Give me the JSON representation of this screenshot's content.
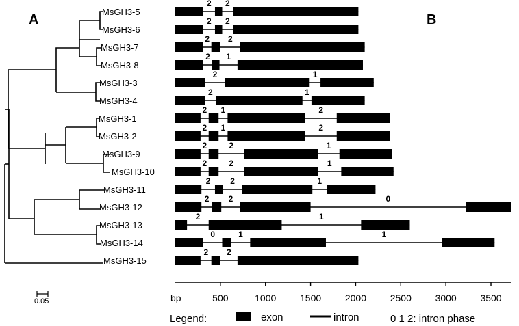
{
  "panels": {
    "a": "A",
    "b": "B"
  },
  "scale_bar": "0.05",
  "axis": {
    "label": "bp",
    "max": 3720,
    "ticks": [
      500,
      1000,
      1500,
      2000,
      2500,
      3000,
      3500
    ]
  },
  "legend": {
    "title": "Legend:",
    "exon": "exon",
    "intron": "intron",
    "phase": "0 1 2: intron phase"
  },
  "colors": {
    "exon": "#000000",
    "line": "#000000"
  },
  "genes": [
    {
      "name": "MsGH3-5",
      "exons": [
        [
          0,
          310
        ],
        [
          440,
          520
        ],
        [
          640,
          2030
        ]
      ],
      "phases": [
        "2",
        "2"
      ]
    },
    {
      "name": "MsGH3-6",
      "exons": [
        [
          0,
          310
        ],
        [
          440,
          520
        ],
        [
          640,
          2030
        ]
      ],
      "phases": [
        "2",
        "2"
      ]
    },
    {
      "name": "MsGH3-7",
      "exons": [
        [
          0,
          310
        ],
        [
          400,
          500
        ],
        [
          720,
          2100
        ]
      ],
      "phases": [
        "2",
        "2"
      ]
    },
    {
      "name": "MsGH3-8",
      "exons": [
        [
          0,
          310
        ],
        [
          410,
          490
        ],
        [
          690,
          2080
        ]
      ],
      "phases": [
        "2",
        "1"
      ]
    },
    {
      "name": "MsGH3-3",
      "exons": [
        [
          0,
          330
        ],
        [
          550,
          1490
        ],
        [
          1610,
          2200
        ]
      ],
      "phases": [
        "2",
        "1"
      ]
    },
    {
      "name": "MsGH3-4",
      "exons": [
        [
          0,
          330
        ],
        [
          450,
          1410
        ],
        [
          1510,
          2100
        ]
      ],
      "phases": [
        "2",
        "1"
      ]
    },
    {
      "name": "MsGH3-1",
      "exons": [
        [
          0,
          280
        ],
        [
          370,
          480
        ],
        [
          580,
          1440
        ],
        [
          1790,
          2380
        ]
      ],
      "phases": [
        "2",
        "1",
        "2"
      ]
    },
    {
      "name": "MsGH3-2",
      "exons": [
        [
          0,
          280
        ],
        [
          370,
          480
        ],
        [
          580,
          1440
        ],
        [
          1790,
          2380
        ]
      ],
      "phases": [
        "2",
        "1",
        "2"
      ]
    },
    {
      "name": "MsGH3-9",
      "exons": [
        [
          0,
          280
        ],
        [
          370,
          480
        ],
        [
          760,
          1580
        ],
        [
          1820,
          2400
        ]
      ],
      "phases": [
        "2",
        "2",
        "1"
      ]
    },
    {
      "name": "MsGH3-10",
      "exons": [
        [
          0,
          280
        ],
        [
          370,
          480
        ],
        [
          760,
          1580
        ],
        [
          1840,
          2420
        ]
      ],
      "phases": [
        "2",
        "2",
        "1"
      ]
    },
    {
      "name": "MsGH3-11",
      "exons": [
        [
          0,
          290
        ],
        [
          440,
          530
        ],
        [
          740,
          1520
        ],
        [
          1680,
          2220
        ]
      ],
      "phases": [
        "2",
        "2",
        "1"
      ]
    },
    {
      "name": "MsGH3-12",
      "exons": [
        [
          0,
          290
        ],
        [
          410,
          510
        ],
        [
          720,
          1500
        ],
        [
          3220,
          3720
        ]
      ],
      "phases": [
        "2",
        "2",
        "0"
      ]
    },
    {
      "name": "MsGH3-13",
      "exons": [
        [
          0,
          130
        ],
        [
          370,
          1180
        ],
        [
          2060,
          2600
        ]
      ],
      "phases": [
        "2",
        "1"
      ]
    },
    {
      "name": "MsGH3-14",
      "exons": [
        [
          0,
          310
        ],
        [
          520,
          620
        ],
        [
          830,
          1670
        ],
        [
          2960,
          3540
        ]
      ],
      "phases": [
        "0",
        "1",
        "1"
      ]
    },
    {
      "name": "MsGH3-15",
      "exons": [
        [
          0,
          280
        ],
        [
          400,
          500
        ],
        [
          690,
          2030
        ]
      ],
      "phases": [
        "2",
        "2"
      ]
    }
  ]
}
